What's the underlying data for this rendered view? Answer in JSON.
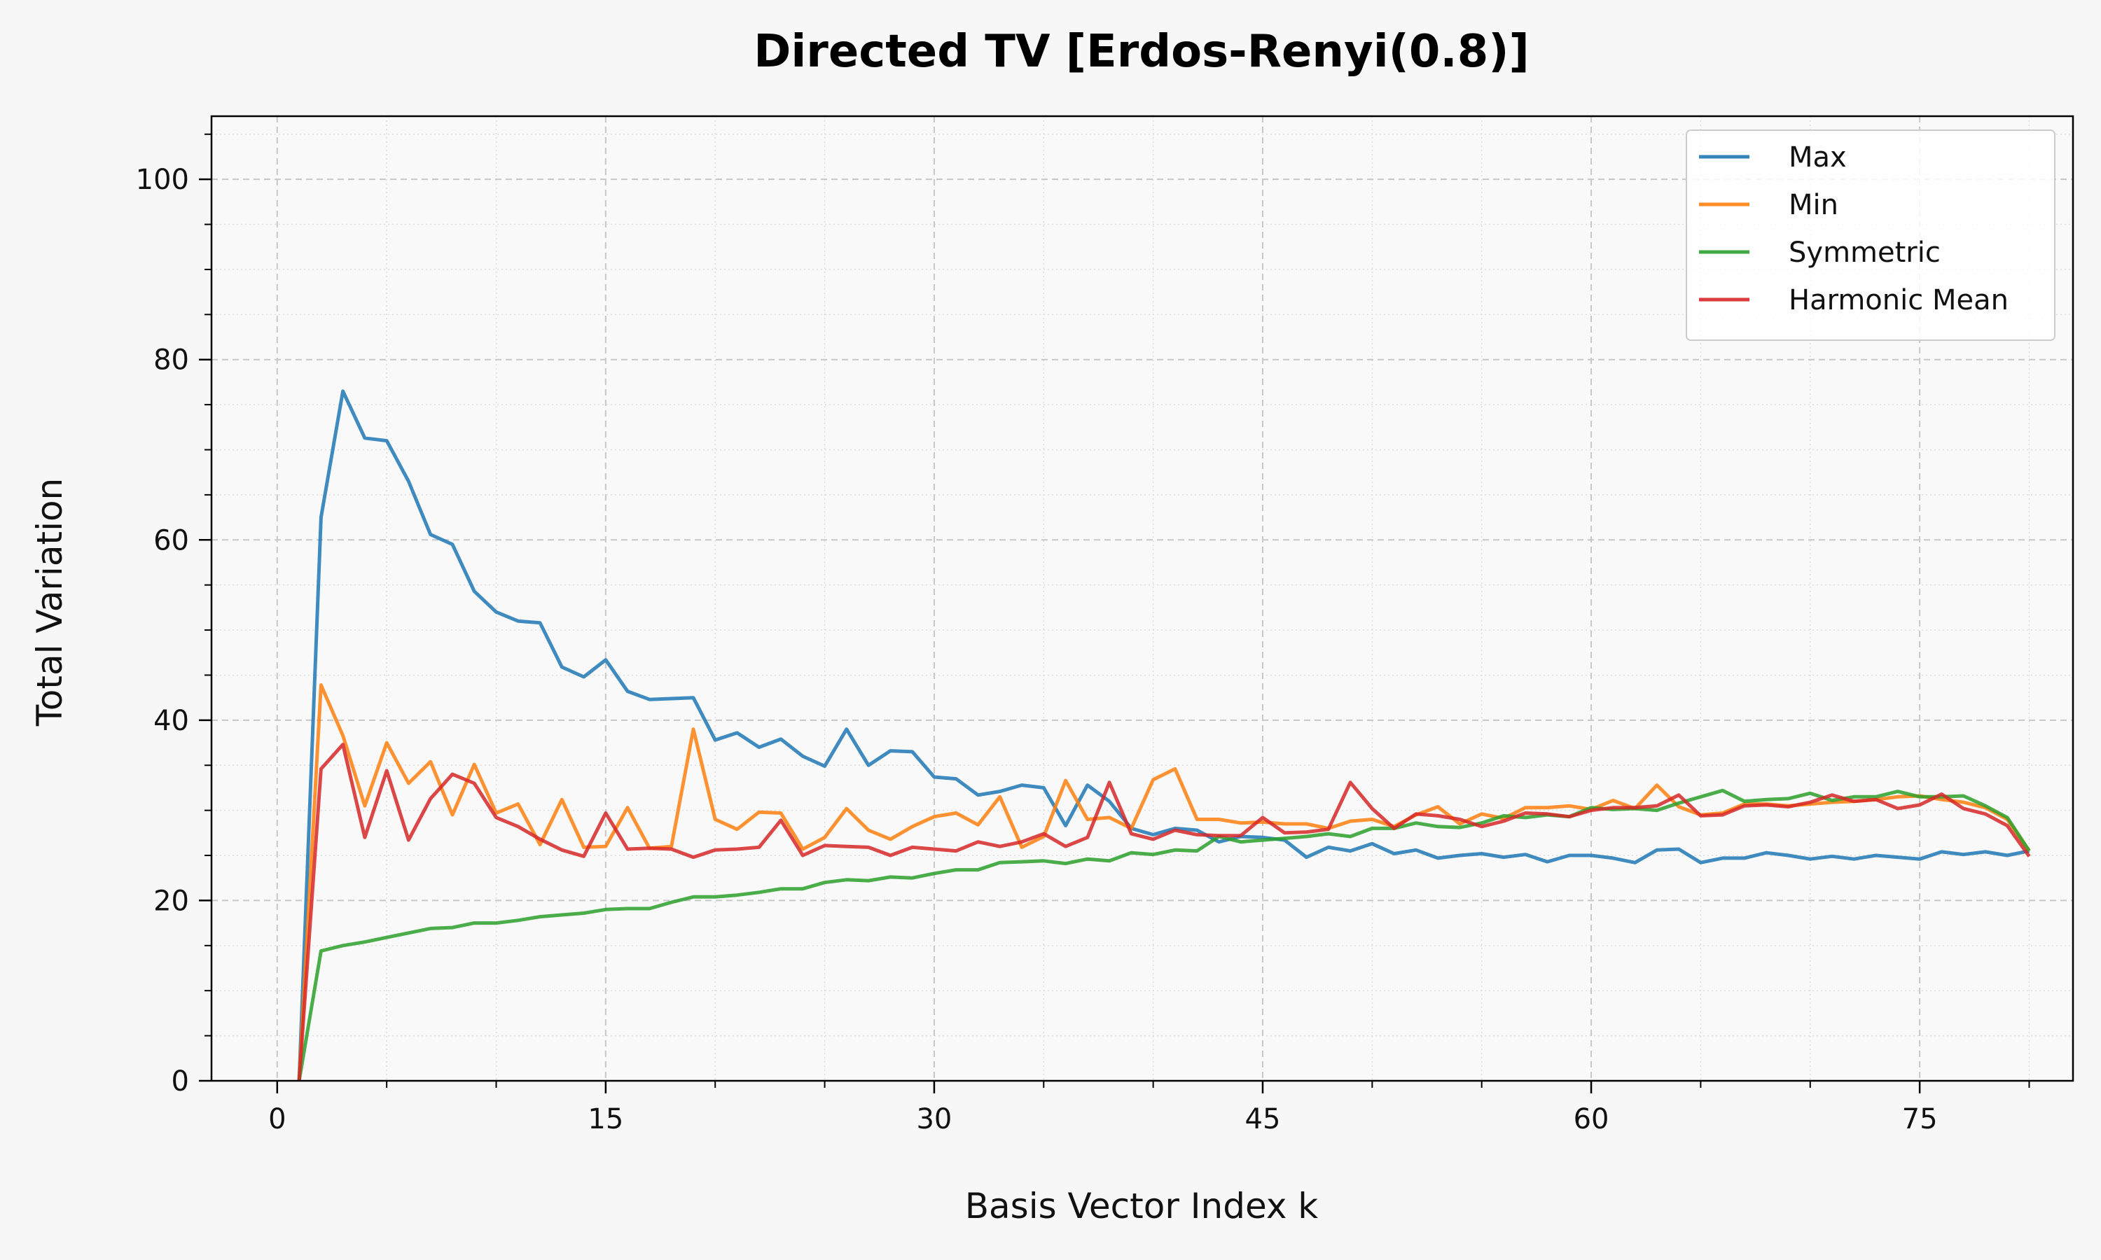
{
  "chart_data": {
    "type": "line",
    "title": "Directed TV [Erdos-Renyi(0.8)]",
    "xlabel": "Basis Vector Index k",
    "ylabel": "Total Variation",
    "xlim": [
      -3,
      82
    ],
    "ylim": [
      0,
      107
    ],
    "xticks": [
      0,
      15,
      30,
      45,
      60,
      75
    ],
    "yticks": [
      0,
      20,
      40,
      60,
      80,
      100
    ],
    "grid": true,
    "legend_position": "top-right",
    "x": [
      1,
      2,
      3,
      4,
      5,
      6,
      7,
      8,
      9,
      10,
      11,
      12,
      13,
      14,
      15,
      16,
      17,
      18,
      19,
      20,
      21,
      22,
      23,
      24,
      25,
      26,
      27,
      28,
      29,
      30,
      31,
      32,
      33,
      34,
      35,
      36,
      37,
      38,
      39,
      40,
      41,
      42,
      43,
      44,
      45,
      46,
      47,
      48,
      49,
      50,
      51,
      52,
      53,
      54,
      55,
      56,
      57,
      58,
      59,
      60,
      61,
      62,
      63,
      64,
      65,
      66,
      67,
      68,
      69,
      70,
      71,
      72,
      73,
      74,
      75,
      76,
      77,
      78,
      79,
      80
    ],
    "series": [
      {
        "name": "Max",
        "color": "#1f77b4",
        "values": [
          0,
          62.5,
          76.5,
          71.3,
          71.0,
          66.5,
          60.6,
          59.5,
          54.3,
          52.0,
          51.0,
          50.8,
          45.9,
          44.8,
          46.7,
          43.2,
          42.3,
          42.4,
          42.5,
          37.8,
          38.6,
          37.0,
          37.9,
          36.0,
          34.9,
          39.0,
          35.0,
          36.6,
          36.5,
          33.7,
          33.5,
          31.7,
          32.1,
          32.8,
          32.5,
          28.3,
          32.8,
          31.0,
          28.0,
          27.3,
          28.0,
          27.8,
          26.5,
          27.1,
          27.0,
          26.7,
          24.8,
          25.9,
          25.5,
          26.3,
          25.2,
          25.6,
          24.7,
          25.0,
          25.2,
          24.8,
          25.1,
          24.3,
          25.0,
          25.0,
          24.7,
          24.2,
          25.6,
          25.7,
          24.2,
          24.7,
          24.7,
          25.3,
          25.0,
          24.6,
          24.9,
          24.6,
          25.0,
          24.8,
          24.6,
          25.4,
          25.1,
          25.4,
          25.0,
          25.5
        ]
      },
      {
        "name": "Min",
        "color": "#ff7f0e",
        "values": [
          0,
          43.9,
          38.3,
          30.5,
          37.5,
          33.0,
          35.4,
          29.5,
          35.1,
          29.7,
          30.7,
          26.2,
          31.2,
          25.9,
          26.0,
          30.3,
          25.8,
          26.0,
          39.0,
          29.0,
          27.9,
          29.8,
          29.7,
          25.7,
          27.0,
          30.2,
          27.8,
          26.8,
          28.2,
          29.3,
          29.7,
          28.4,
          31.5,
          25.9,
          27.1,
          33.3,
          29.0,
          29.2,
          28.0,
          33.4,
          34.6,
          29.0,
          29.0,
          28.6,
          28.7,
          28.5,
          28.5,
          28.0,
          28.8,
          29.0,
          28.2,
          29.5,
          30.4,
          28.5,
          29.6,
          29.1,
          30.3,
          30.3,
          30.5,
          30.1,
          31.1,
          30.2,
          32.8,
          30.4,
          29.5,
          29.7,
          30.7,
          30.7,
          30.5,
          30.7,
          30.9,
          31.0,
          31.2,
          31.5,
          31.6,
          31.2,
          30.9,
          30.3,
          29.0,
          25.5
        ]
      },
      {
        "name": "Symmetric",
        "color": "#2ca02c",
        "values": [
          0,
          14.4,
          15.0,
          15.4,
          15.9,
          16.4,
          16.9,
          17.0,
          17.5,
          17.5,
          17.8,
          18.2,
          18.4,
          18.6,
          19.0,
          19.1,
          19.1,
          19.8,
          20.4,
          20.4,
          20.6,
          20.9,
          21.3,
          21.3,
          22.0,
          22.3,
          22.2,
          22.6,
          22.5,
          23.0,
          23.4,
          23.4,
          24.2,
          24.3,
          24.4,
          24.1,
          24.6,
          24.4,
          25.3,
          25.1,
          25.6,
          25.5,
          27.1,
          26.5,
          26.7,
          26.9,
          27.1,
          27.4,
          27.1,
          28.0,
          28.0,
          28.6,
          28.2,
          28.1,
          28.6,
          29.4,
          29.2,
          29.5,
          29.3,
          30.3,
          30.1,
          30.2,
          30.0,
          30.8,
          31.5,
          32.2,
          31.0,
          31.2,
          31.3,
          31.9,
          31.1,
          31.5,
          31.5,
          32.1,
          31.5,
          31.5,
          31.6,
          30.5,
          29.2,
          25.5
        ]
      },
      {
        "name": "Harmonic Mean",
        "color": "#d62728",
        "values": [
          0,
          34.6,
          37.3,
          27.0,
          34.4,
          26.7,
          31.3,
          34.0,
          33.0,
          29.2,
          28.2,
          26.8,
          25.6,
          24.9,
          29.7,
          25.7,
          25.8,
          25.7,
          24.8,
          25.6,
          25.7,
          25.9,
          28.9,
          25.0,
          26.1,
          26.0,
          25.9,
          25.0,
          25.9,
          25.7,
          25.5,
          26.5,
          26.0,
          26.5,
          27.4,
          26.0,
          27.0,
          33.1,
          27.4,
          26.8,
          27.8,
          27.3,
          27.2,
          27.2,
          29.2,
          27.5,
          27.6,
          27.9,
          33.1,
          30.2,
          28.0,
          29.6,
          29.4,
          29.0,
          28.2,
          28.8,
          29.7,
          29.6,
          29.3,
          30.0,
          30.3,
          30.3,
          30.5,
          31.7,
          29.4,
          29.5,
          30.5,
          30.6,
          30.4,
          30.9,
          31.7,
          31.0,
          31.2,
          30.2,
          30.6,
          31.8,
          30.2,
          29.6,
          28.3,
          24.9
        ]
      }
    ]
  }
}
